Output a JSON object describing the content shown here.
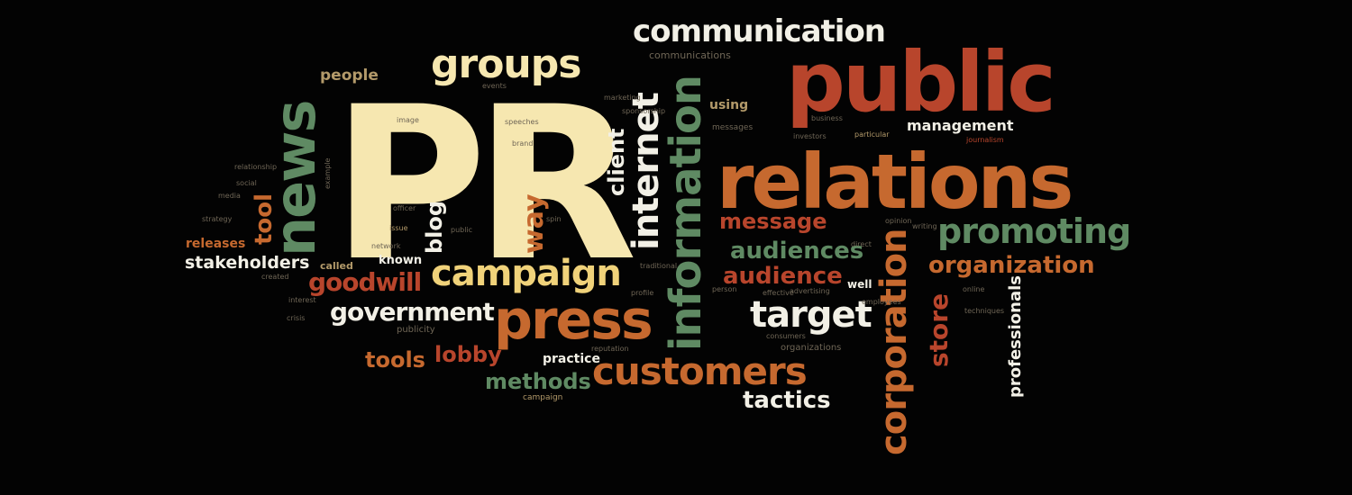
{
  "colors": {
    "background": "#030303",
    "cream": "#f6e7b0",
    "white": "#f2f0e6",
    "orange": "#c6692f",
    "red": "#b8452c",
    "green": "#5f8a63",
    "tan": "#b39a6a",
    "muted": "#6f6656"
  },
  "words": {
    "pr": "PR",
    "public": "public",
    "relations": "relations",
    "communication": "communication",
    "groups": "groups",
    "news": "news",
    "press": "press",
    "campaign": "campaign",
    "information": "information",
    "internet": "internet",
    "corporation": "corporation",
    "customers": "customers",
    "target": "target",
    "promoting": "promoting",
    "organization": "organization",
    "government": "government",
    "goodwill": "goodwill",
    "stakeholders": "stakeholders",
    "audiences": "audiences",
    "audience": "audience",
    "message": "message",
    "tactics": "tactics",
    "methods": "methods",
    "tools": "tools",
    "lobby": "lobby",
    "store": "store",
    "professionals": "professionals",
    "management": "management",
    "way": "way",
    "client": "client",
    "blog": "blog",
    "tool": "tool",
    "people": "people",
    "releases": "releases",
    "called": "called",
    "known": "known",
    "practice": "practice",
    "using": "using",
    "communications": "communications",
    "campaign_small": "campaign",
    "organizations": "organizations",
    "publicity": "publicity",
    "well": "well",
    "marketing": "marketing",
    "events": "events",
    "messages": "messages",
    "particular": "particular",
    "journalism": "journalism",
    "example": "example",
    "online": "online",
    "social": "social",
    "media": "media",
    "strategy": "strategy",
    "issue": "issue",
    "crisis": "crisis",
    "image": "image",
    "reputation": "reputation",
    "advertising": "advertising",
    "techniques": "techniques",
    "person": "person",
    "created": "created",
    "business": "business",
    "public_small": "public",
    "officer": "officer",
    "brand": "brand",
    "sponsorship": "sponsorship",
    "traditional": "traditional",
    "effective": "effective",
    "direct": "direct",
    "spin": "spin",
    "opinion": "opinion",
    "writing": "writing",
    "speeches": "speeches",
    "network": "network",
    "interest": "interest",
    "relationship": "relationship",
    "employees": "employees",
    "investors": "investors",
    "consumers": "consumers",
    "profile": "profile"
  }
}
